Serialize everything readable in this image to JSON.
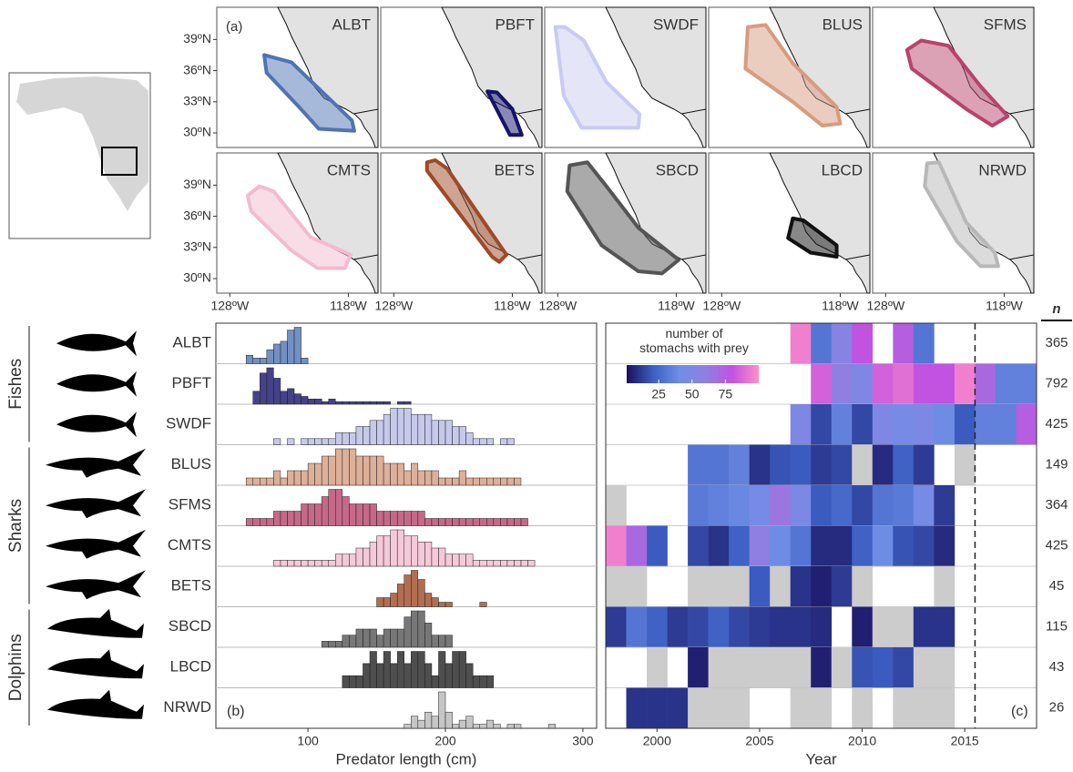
{
  "groups": [
    "Fishes",
    "Sharks",
    "Dolphins"
  ],
  "chart_data": [
    {
      "type": "map",
      "panel_label": "(a)",
      "xlim": [
        -129.1,
        -115.5
      ],
      "ylim": [
        28.6,
        42.1
      ],
      "xticks": [
        {
          "value": -128,
          "label": "128ºW"
        },
        {
          "value": -118,
          "label": "118ºW"
        }
      ],
      "yticks": [
        {
          "value": 30,
          "label": "30ºN"
        },
        {
          "value": 33,
          "label": "33ºN"
        },
        {
          "value": 36,
          "label": "36ºN"
        },
        {
          "value": 39,
          "label": "39ºN"
        }
      ],
      "series": [
        {
          "name": "ALBT",
          "color": "#4f74b3",
          "lon": [
            -125.1,
            -124.9,
            -122.0,
            -120.5,
            -117.5,
            -117.7,
            -122.8
          ],
          "lat": [
            37.5,
            35.8,
            32.3,
            30.4,
            30.2,
            31.2,
            36.8
          ]
        },
        {
          "name": "PBFT",
          "color": "#15136b",
          "lon": [
            -120.1,
            -118.2,
            -117.2,
            -118.0,
            -119.3
          ],
          "lat": [
            34.0,
            29.8,
            29.8,
            32.3,
            33.9
          ]
        },
        {
          "name": "SWDF",
          "color": "#c9cbf0",
          "lon": [
            -128.2,
            -127.5,
            -126.0,
            -121.2,
            -121.1,
            -123.9,
            -125.8,
            -127.4
          ],
          "lat": [
            40.2,
            33.6,
            30.5,
            30.5,
            31.8,
            34.9,
            38.9,
            40.2
          ]
        },
        {
          "name": "BLUS",
          "color": "#d69c80",
          "lon": [
            -125.8,
            -126.0,
            -122.0,
            -119.5,
            -118.0,
            -118.3,
            -122.0,
            -124.3
          ],
          "lat": [
            40.2,
            36.2,
            33.0,
            30.7,
            30.9,
            32.5,
            36.7,
            40.4
          ]
        },
        {
          "name": "SFMS",
          "color": "#b7436c",
          "lon": [
            -126.2,
            -125.8,
            -121.2,
            -119.0,
            -117.7,
            -120.0,
            -122.7,
            -125.0
          ],
          "lat": [
            38.0,
            36.2,
            32.3,
            30.7,
            31.6,
            34.5,
            38.4,
            38.9
          ]
        },
        {
          "name": "CMTS",
          "color": "#f2bbd0",
          "lon": [
            -126.5,
            -126.2,
            -122.8,
            -120.6,
            -118.3,
            -117.8,
            -121.2,
            -124.3,
            -125.5
          ],
          "lat": [
            38.0,
            36.5,
            32.7,
            31.0,
            31.0,
            32.3,
            34.0,
            38.4,
            38.9
          ]
        },
        {
          "name": "BETS",
          "color": "#9e4a25",
          "lon": [
            -125.2,
            -125.2,
            -119.7,
            -119.1,
            -118.5,
            -123.5,
            -124.5
          ],
          "lat": [
            41.2,
            40.4,
            32.1,
            31.6,
            32.3,
            40.6,
            41.4
          ]
        },
        {
          "name": "SBCD",
          "color": "#555555",
          "lon": [
            -127.0,
            -127.2,
            -124.3,
            -121.2,
            -119.2,
            -117.8,
            -121.2,
            -123.9,
            -125.5
          ],
          "lat": [
            40.9,
            38.4,
            33.2,
            30.7,
            30.5,
            31.8,
            34.9,
            38.9,
            41.2
          ]
        },
        {
          "name": "LBCD",
          "color": "#111111",
          "lon": [
            -122.0,
            -122.4,
            -120.5,
            -118.3,
            -118.3,
            -121.1
          ],
          "lat": [
            35.8,
            33.9,
            32.5,
            32.1,
            33.2,
            35.6
          ]
        },
        {
          "name": "NRWD",
          "color": "#b8b8b8",
          "lon": [
            -124.5,
            -124.7,
            -122.0,
            -120.0,
            -118.5,
            -118.8,
            -121.2,
            -123.5
          ],
          "lat": [
            41.1,
            38.9,
            33.6,
            31.2,
            31.2,
            32.5,
            35.4,
            41.2
          ]
        }
      ]
    },
    {
      "type": "histogram",
      "panel_label": "(b)",
      "xlabel": "Predator length (cm)",
      "xlim": [
        33,
        310
      ],
      "xticks": [
        100,
        200,
        300
      ],
      "series": [
        {
          "color": "#4f74b3",
          "bins": [
            55,
            60,
            65,
            70,
            75,
            80,
            85,
            90,
            95,
            100
          ],
          "counts": [
            3,
            2,
            2,
            5,
            7,
            8,
            12,
            13,
            2
          ]
        },
        {
          "color": "#15136b",
          "bins": [
            60,
            65,
            70,
            75,
            80,
            85,
            90,
            95,
            100,
            105,
            110,
            115,
            120,
            125,
            130,
            135,
            140,
            145,
            150,
            155,
            160,
            165,
            170,
            175
          ],
          "counts": [
            5,
            12,
            14,
            10,
            5,
            6,
            4,
            3,
            2,
            2,
            1,
            2,
            1,
            1,
            1,
            1,
            1,
            1,
            1,
            1,
            0,
            1,
            1
          ]
        },
        {
          "color": "#b9bbe6",
          "bins": [
            75,
            80,
            85,
            90,
            95,
            100,
            105,
            110,
            115,
            120,
            125,
            130,
            135,
            140,
            145,
            150,
            155,
            160,
            165,
            170,
            175,
            180,
            185,
            190,
            195,
            200,
            205,
            210,
            215,
            220,
            225,
            230,
            235,
            240,
            245,
            250
          ],
          "counts": [
            1,
            0,
            1,
            0,
            1,
            1,
            1,
            1,
            1,
            2,
            2,
            2,
            3,
            3,
            4,
            4,
            5,
            6,
            6,
            6,
            5,
            5,
            5,
            4,
            4,
            4,
            3,
            3,
            2,
            1,
            1,
            1,
            0,
            1,
            1
          ]
        },
        {
          "color": "#d69c80",
          "bins": [
            55,
            60,
            65,
            70,
            75,
            80,
            85,
            90,
            95,
            100,
            105,
            110,
            115,
            120,
            125,
            130,
            135,
            140,
            145,
            150,
            155,
            160,
            165,
            170,
            175,
            180,
            185,
            190,
            195,
            200,
            205,
            210,
            215,
            220,
            225,
            230,
            235,
            240,
            245,
            250,
            255
          ],
          "counts": [
            1,
            1,
            1,
            1,
            2,
            1,
            2,
            2,
            2,
            3,
            3,
            4,
            4,
            5,
            5,
            5,
            4,
            4,
            4,
            4,
            3,
            3,
            3,
            2,
            3,
            2,
            2,
            2,
            1,
            1,
            1,
            2,
            1,
            1,
            1,
            1,
            1,
            1,
            1,
            1
          ]
        },
        {
          "color": "#b7436c",
          "bins": [
            55,
            60,
            65,
            70,
            75,
            80,
            85,
            90,
            95,
            100,
            105,
            110,
            115,
            120,
            125,
            130,
            135,
            140,
            145,
            150,
            155,
            160,
            165,
            170,
            175,
            180,
            185,
            190,
            195,
            200,
            205,
            210,
            215,
            220,
            225,
            230,
            235,
            240,
            245,
            250,
            255,
            260
          ],
          "counts": [
            1,
            1,
            1,
            1,
            2,
            2,
            2,
            2,
            3,
            3,
            3,
            4,
            5,
            5,
            4,
            3,
            3,
            3,
            3,
            2,
            2,
            2,
            2,
            2,
            2,
            2,
            1,
            1,
            1,
            1,
            1,
            1,
            1,
            1,
            1,
            1,
            1,
            1,
            1,
            1,
            1
          ]
        },
        {
          "color": "#f2bbd0",
          "bins": [
            75,
            80,
            85,
            90,
            95,
            100,
            105,
            110,
            115,
            120,
            125,
            130,
            135,
            140,
            145,
            150,
            155,
            160,
            165,
            170,
            175,
            180,
            185,
            190,
            195,
            200,
            205,
            210,
            215,
            220,
            225,
            230,
            235,
            240,
            245,
            250,
            255,
            260,
            265
          ],
          "counts": [
            1,
            1,
            1,
            1,
            1,
            1,
            1,
            1,
            1,
            2,
            2,
            2,
            3,
            3,
            4,
            5,
            5,
            6,
            6,
            5,
            5,
            4,
            4,
            3,
            3,
            2,
            2,
            2,
            2,
            1,
            1,
            1,
            1,
            1,
            1,
            1,
            1,
            1
          ]
        },
        {
          "color": "#9e4a25",
          "bins": [
            150,
            155,
            160,
            165,
            170,
            175,
            180,
            185,
            190,
            195,
            200,
            205,
            210,
            215,
            220,
            225,
            230
          ],
          "counts": [
            2,
            2,
            3,
            5,
            7,
            8,
            6,
            3,
            2,
            1,
            1,
            0,
            0,
            0,
            0,
            1
          ]
        },
        {
          "color": "#555555",
          "bins": [
            110,
            115,
            120,
            125,
            130,
            135,
            140,
            145,
            150,
            155,
            160,
            165,
            170,
            175,
            180,
            185,
            190,
            195,
            200,
            205
          ],
          "counts": [
            1,
            1,
            1,
            2,
            2,
            3,
            3,
            3,
            2,
            3,
            3,
            3,
            5,
            6,
            6,
            4,
            2,
            2,
            2
          ]
        },
        {
          "color": "#222222",
          "bins": [
            125,
            130,
            135,
            140,
            145,
            150,
            155,
            160,
            165,
            170,
            175,
            180,
            185,
            190,
            195,
            200,
            205,
            210,
            215,
            220,
            225,
            230,
            235
          ],
          "counts": [
            1,
            1,
            1,
            2,
            3,
            2,
            3,
            2,
            3,
            2,
            3,
            3,
            2,
            1,
            3,
            2,
            3,
            3,
            2,
            1,
            1,
            1
          ]
        },
        {
          "color": "#b8b8b8",
          "bins": [
            170,
            175,
            180,
            185,
            190,
            195,
            200,
            205,
            210,
            215,
            220,
            225,
            230,
            235,
            240,
            245,
            250,
            255,
            260,
            265,
            270,
            275,
            280
          ],
          "counts": [
            1,
            3,
            2,
            4,
            3,
            9,
            4,
            1,
            2,
            3,
            1,
            1,
            2,
            1,
            0,
            1,
            1,
            0,
            0,
            0,
            0,
            1
          ]
        }
      ]
    },
    {
      "type": "heatmap",
      "panel_label": "(c)",
      "xlabel": "Year",
      "x": [
        1998,
        1999,
        2000,
        2001,
        2002,
        2003,
        2004,
        2005,
        2006,
        2007,
        2008,
        2009,
        2010,
        2011,
        2012,
        2013,
        2014,
        2015,
        2016,
        2017,
        2018
      ],
      "xlim": [
        1997.5,
        2018.5
      ],
      "xticks": [
        2000,
        2005,
        2010,
        2015
      ],
      "vline": 2015.5,
      "colorbar": {
        "title": "number of stomachs with prey",
        "lim": [
          1,
          100
        ],
        "ticks": [
          25,
          50,
          75
        ],
        "colors": [
          "#1a0f5c",
          "#3c5fc2",
          "#6f8ee6",
          "#8f7fe0",
          "#c352e0",
          "#ff8fc8"
        ]
      },
      "no_prey_color": "#cccccc",
      "rows": [
        [
          null,
          null,
          null,
          null,
          null,
          null,
          null,
          null,
          null,
          95,
          30,
          55,
          80,
          null,
          75,
          30,
          null,
          null,
          null,
          null,
          null
        ],
        [
          null,
          null,
          null,
          null,
          null,
          null,
          null,
          null,
          null,
          null,
          85,
          60,
          50,
          85,
          90,
          80,
          80,
          95,
          70,
          35,
          35
        ],
        [
          null,
          null,
          null,
          null,
          null,
          null,
          null,
          null,
          null,
          50,
          15,
          35,
          15,
          50,
          45,
          48,
          40,
          20,
          35,
          35,
          75
        ],
        [
          null,
          null,
          null,
          null,
          30,
          30,
          35,
          10,
          18,
          20,
          12,
          15,
          0,
          8,
          22,
          12,
          null,
          0,
          null,
          null,
          null
        ],
        [
          0,
          null,
          null,
          null,
          32,
          35,
          38,
          45,
          65,
          48,
          20,
          25,
          15,
          30,
          32,
          45,
          12,
          null,
          null,
          null,
          null
        ],
        [
          95,
          70,
          20,
          null,
          15,
          10,
          22,
          60,
          40,
          30,
          8,
          8,
          22,
          40,
          18,
          15,
          8,
          null,
          null,
          null,
          null
        ],
        [
          0,
          0,
          null,
          null,
          0,
          0,
          0,
          20,
          0,
          10,
          5,
          12,
          0,
          null,
          null,
          null,
          0,
          null,
          null,
          null,
          null
        ],
        [
          12,
          30,
          22,
          12,
          15,
          22,
          15,
          12,
          10,
          10,
          8,
          null,
          5,
          0,
          0,
          10,
          10,
          null,
          null,
          null,
          null
        ],
        [
          null,
          null,
          0,
          null,
          5,
          0,
          0,
          0,
          0,
          0,
          5,
          0,
          18,
          20,
          15,
          0,
          0,
          null,
          null,
          null,
          null
        ],
        [
          null,
          10,
          10,
          10,
          0,
          0,
          0,
          null,
          null,
          0,
          0,
          null,
          0,
          null,
          0,
          0,
          0,
          null,
          null,
          null,
          null
        ]
      ],
      "n_label": "n",
      "n": [
        365,
        792,
        425,
        149,
        364,
        425,
        45,
        115,
        43,
        26
      ]
    }
  ]
}
